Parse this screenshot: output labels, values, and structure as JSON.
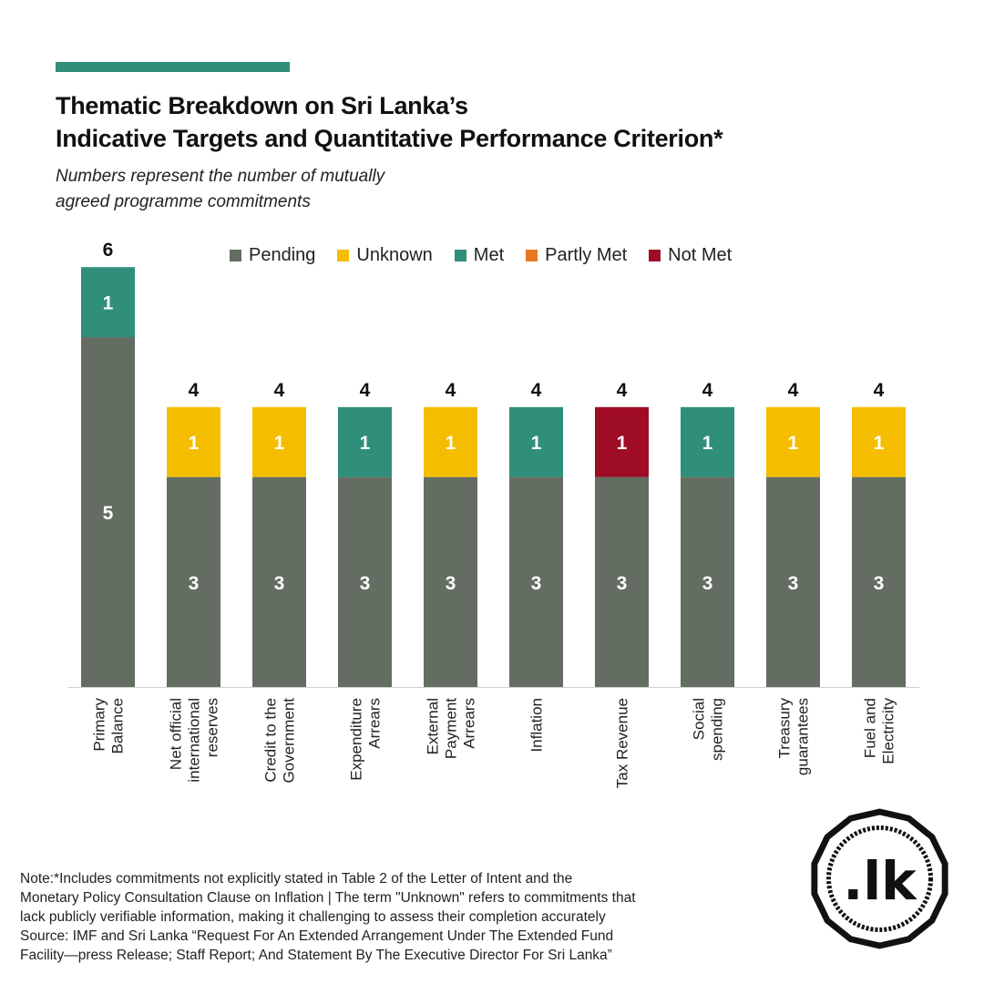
{
  "title_line1": "Thematic Breakdown on Sri Lanka’s",
  "title_line2": "Indicative Targets and Quantitative Performance Criterion*",
  "subtitle_line1": "Numbers represent the number of mutually",
  "subtitle_line2": "agreed programme commitments",
  "note_lines": [
    "Note:*Includes  commitments not explicitly stated in Table 2 of the Letter of Intent and the",
    "Monetary Policy Consultation Clause on Inflation | The term \"Unknown\" refers to commitments that",
    "lack publicly verifiable information, making it challenging to assess their completion accurately",
    "Source: IMF and Sri Lanka “Request For An Extended Arrangement Under The Extended Fund",
    "Facility—press Release; Staff Report; And Statement By The Executive Director For Sri Lanka”"
  ],
  "logo_text": ".lk",
  "colors": {
    "accent": "#2f8f7b",
    "pending": "#636d62",
    "unknown": "#f5bd00",
    "met": "#2f8f7b",
    "partly_met": "#e87722",
    "not_met": "#9e0c25"
  },
  "chart_data": {
    "type": "bar",
    "stacked": true,
    "categories": [
      [
        "Primary",
        "Balance"
      ],
      [
        "Net official",
        "international",
        "reserves"
      ],
      [
        "Credit to the",
        "Government"
      ],
      [
        "Expenditure",
        "Arrears"
      ],
      [
        "External",
        "Payment",
        "Arrears"
      ],
      [
        "Inflation"
      ],
      [
        "Tax Revenue"
      ],
      [
        "Social",
        "spending"
      ],
      [
        "Treasury",
        "guarantees"
      ],
      [
        "Fuel and",
        "Electricity"
      ]
    ],
    "series": [
      {
        "name": "Pending",
        "color": "#636d62",
        "values": [
          5,
          3,
          3,
          3,
          3,
          3,
          3,
          3,
          3,
          3
        ]
      },
      {
        "name": "Unknown",
        "color": "#f5bd00",
        "values": [
          0,
          1,
          1,
          0,
          1,
          0,
          0,
          0,
          1,
          1
        ]
      },
      {
        "name": "Met",
        "color": "#2f8f7b",
        "values": [
          1,
          0,
          0,
          1,
          0,
          1,
          0,
          1,
          0,
          0
        ]
      },
      {
        "name": "Partly Met",
        "color": "#e87722",
        "values": [
          0,
          0,
          0,
          0,
          0,
          0,
          0,
          0,
          0,
          0
        ]
      },
      {
        "name": "Not Met",
        "color": "#9e0c25",
        "values": [
          0,
          0,
          0,
          0,
          0,
          0,
          1,
          0,
          0,
          0
        ]
      }
    ],
    "totals": [
      6,
      4,
      4,
      4,
      4,
      4,
      4,
      4,
      4,
      4
    ],
    "ylim": [
      0,
      6
    ],
    "grid": false,
    "legend_position": "top"
  }
}
